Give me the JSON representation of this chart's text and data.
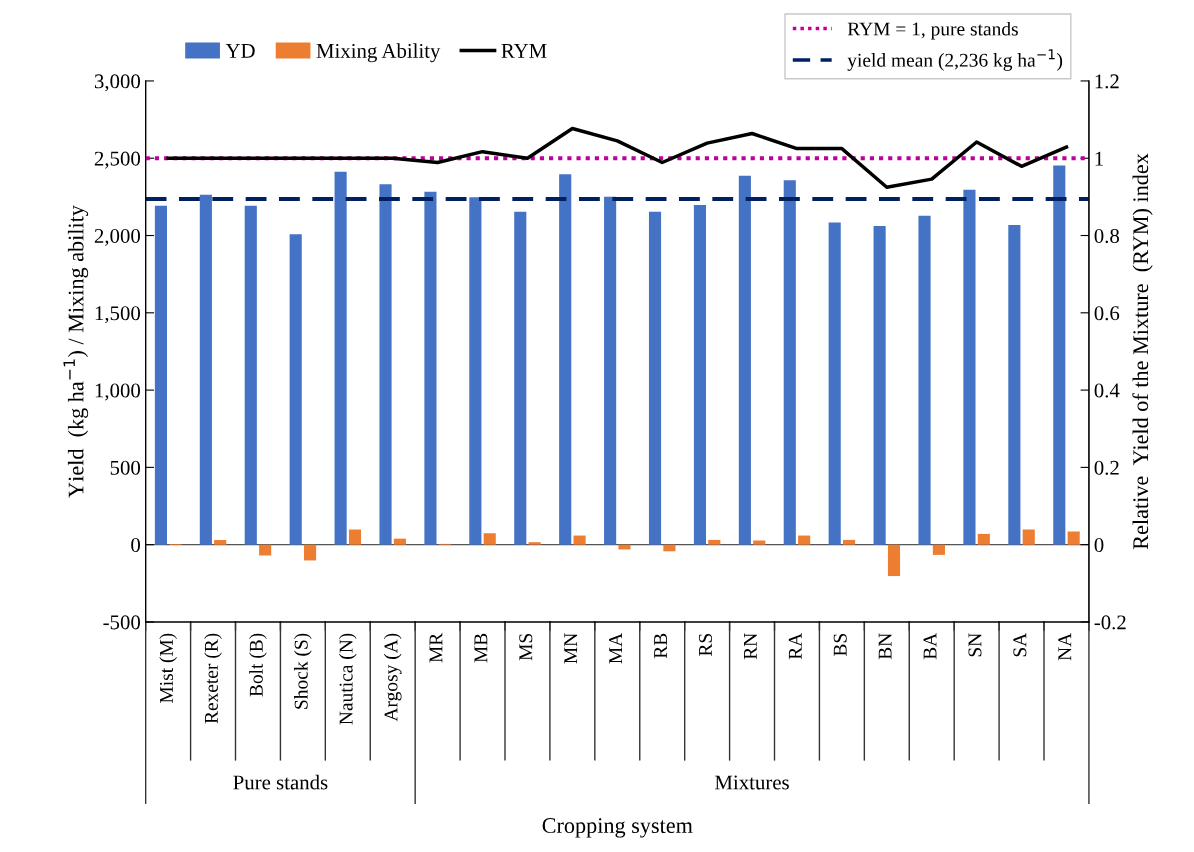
{
  "chart_data": {
    "type": "bar",
    "xlabel": "Cropping system",
    "ylabel": "Yield  (kg ha$^{−1}$) / Mixing ability",
    "y2label": "Relative  Yield of the Mixture  (RYM) index",
    "categories": [
      "Mist (M)",
      "Rexeter (R)",
      "Bolt (B)",
      "Shock (S)",
      "Nautica (N)",
      "Argosy (A)",
      "MR",
      "MB",
      "MS",
      "MN",
      "MA",
      "RB",
      "RS",
      "RN",
      "RA",
      "BS",
      "BN",
      "BA",
      "SN",
      "SA",
      "NA"
    ],
    "series": [
      {
        "name": "YD",
        "color": "#4472c4",
        "values": [
          2193,
          2264,
          2193,
          2008,
          2412,
          2331,
          2283,
          2247,
          2154,
          2397,
          2251,
          2154,
          2197,
          2386,
          2357,
          2085,
          2062,
          2128,
          2296,
          2068,
          2453
        ]
      },
      {
        "name": "Mixing Ability",
        "color": "#ed7d31",
        "values": [
          5,
          31,
          -70,
          -102,
          98,
          39,
          5,
          74,
          16,
          59,
          -31,
          -43,
          31,
          27,
          59,
          31,
          -203,
          -66,
          70,
          98,
          86
        ]
      },
      {
        "name": "RYM",
        "type": "line",
        "axis": "y2",
        "color": "#000000",
        "values": [
          1.0,
          1.0,
          1.0,
          1.0,
          1.0,
          1.0,
          0.989,
          1.017,
          1.0,
          1.077,
          1.045,
          0.989,
          1.039,
          1.064,
          1.025,
          1.025,
          0.925,
          0.946,
          1.042,
          0.979,
          1.029
        ]
      }
    ],
    "ylim": [
      -500,
      3000
    ],
    "yticks": [
      {
        "value": -500,
        "label": "-500"
      },
      0,
      500,
      {
        "value": 1000,
        "label": "1,000"
      },
      {
        "value": 1500,
        "label": "1,500"
      },
      {
        "value": 2000,
        "label": "2,000"
      },
      {
        "value": 2500,
        "label": "2,500"
      },
      {
        "value": 3000,
        "label": "3,000"
      }
    ],
    "y2lim": [
      -0.2,
      1.2
    ],
    "y2ticks": [
      -0.2,
      0,
      0.2,
      0.4,
      0.6,
      0.8,
      1,
      1.2
    ],
    "ref_lines": [
      {
        "axis": "y2",
        "value": 1,
        "label": "RYM = 1, pure stands",
        "color": "#c0009a",
        "line_style": "dotted"
      },
      {
        "axis": "y",
        "value": 2236,
        "label": "yield mean (2,236 kg ha$^{−1}$)",
        "color": "#002060",
        "line_style": "dashed"
      }
    ],
    "annotations": [
      "Pure stands",
      "Mixtures"
    ],
    "legend": "top",
    "grid": false
  }
}
